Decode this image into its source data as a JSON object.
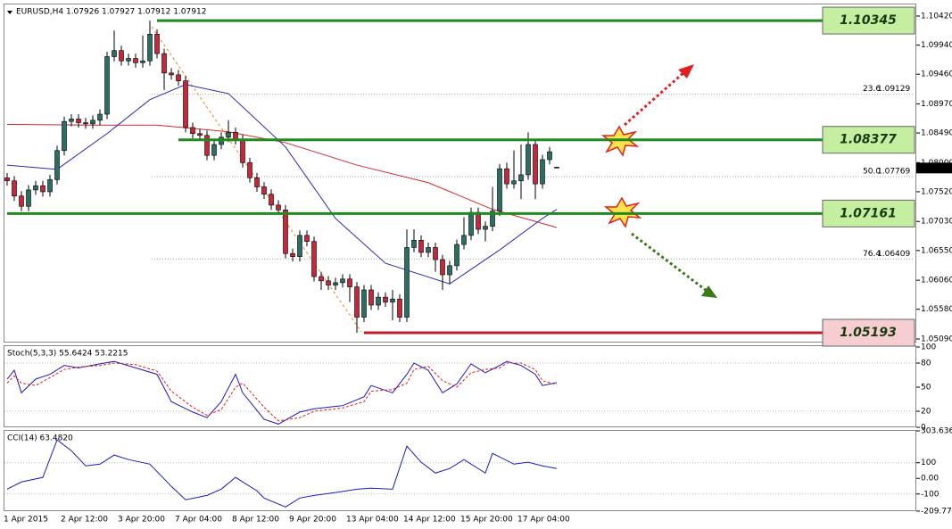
{
  "chart_data": [
    {
      "type": "candlestick",
      "title": "EURUSD,H4  1.07926 1.07927 1.07912 1.07912",
      "categories": [
        "1 Apr 2015",
        null,
        null,
        null,
        null,
        null,
        null,
        null,
        "2 Apr 12:00",
        null,
        null,
        null,
        null,
        null,
        null,
        null,
        "3 Apr 20:00",
        null,
        null,
        null,
        null,
        null,
        null,
        null,
        "7 Apr 04:00",
        null,
        null,
        null,
        null,
        null,
        null,
        null,
        "8 Apr 12:00",
        null,
        null,
        null,
        null,
        null,
        null,
        null,
        "9 Apr 20:00",
        null,
        null,
        null,
        null,
        null,
        null,
        null,
        "13 Apr 04:00",
        null,
        null,
        null,
        null,
        null,
        null,
        null,
        "14 Apr 12:00",
        null,
        null,
        null,
        null,
        null,
        null,
        null,
        "15 Apr 20:00",
        null,
        null,
        null,
        null,
        null,
        null,
        null,
        "17 Apr 04:00",
        null,
        null,
        null,
        null,
        null
      ],
      "open": [
        1.0775,
        1.077,
        1.0745,
        1.0728,
        1.0755,
        1.0762,
        1.0752,
        1.0772,
        1.082,
        1.0868,
        1.0872,
        1.0866,
        1.0864,
        1.087,
        1.088,
        1.0975,
        1.0985,
        1.0968,
        1.0972,
        1.0965,
        1.0968,
        1.1012,
        1.098,
        1.0948,
        1.0945,
        1.0935,
        1.0858,
        1.0848,
        1.0845,
        1.0812,
        1.083,
        1.0842,
        1.085,
        1.0838,
        1.08,
        1.0775,
        1.076,
        1.0748,
        1.073,
        1.0722,
        1.065,
        1.0645,
        1.068,
        1.067,
        1.0612,
        1.0605,
        1.0598,
        1.0602,
        1.0608,
        1.0595,
        1.0545,
        1.059,
        1.0565,
        1.0578,
        1.057,
        1.0575,
        1.0545,
        1.066,
        1.0672,
        1.0652,
        1.066,
        1.064,
        1.0615,
        1.063,
        1.0665,
        1.068,
        1.0718,
        1.069,
        1.0695,
        1.072,
        1.079,
        1.0765,
        1.077,
        1.078,
        1.083,
        1.0765,
        1.0805,
        1.07926
      ],
      "high": [
        1.0783,
        1.0778,
        1.0753,
        1.0763,
        1.077,
        1.077,
        1.078,
        1.0828,
        1.0876,
        1.088,
        1.088,
        1.0874,
        1.0878,
        1.0888,
        1.0983,
        1.1018,
        1.0993,
        1.098,
        1.098,
        1.101,
        1.10345,
        1.102,
        1.0988,
        1.0956,
        1.0953,
        1.0943,
        1.0866,
        1.0856,
        1.0853,
        1.0838,
        1.085,
        1.087,
        1.0858,
        1.0846,
        1.0808,
        1.0783,
        1.0768,
        1.0756,
        1.0738,
        1.073,
        1.0658,
        1.0688,
        1.0688,
        1.0678,
        1.062,
        1.0613,
        1.061,
        1.0616,
        1.0616,
        1.0603,
        1.0598,
        1.0598,
        1.0586,
        1.0586,
        1.059,
        1.0583,
        1.069,
        1.069,
        1.068,
        1.0668,
        1.0668,
        1.0648,
        1.0638,
        1.0673,
        1.071,
        1.0726,
        1.0726,
        1.0703,
        1.076,
        1.0798,
        1.08,
        1.082,
        1.083,
        1.085,
        1.0838,
        1.0813,
        1.0826,
        1.07927
      ],
      "low": [
        1.0762,
        1.0737,
        1.072,
        1.072,
        1.0747,
        1.0744,
        1.0744,
        1.0764,
        1.0812,
        1.086,
        1.0858,
        1.0856,
        1.0856,
        1.0862,
        1.0872,
        1.0967,
        1.096,
        1.096,
        1.0957,
        1.0957,
        1.096,
        1.0972,
        1.092,
        1.0937,
        1.0927,
        1.085,
        1.084,
        1.0837,
        1.0804,
        1.0804,
        1.0822,
        1.0834,
        1.083,
        1.0792,
        1.0767,
        1.0752,
        1.074,
        1.0722,
        1.0714,
        1.0642,
        1.0637,
        1.0637,
        1.0662,
        1.0604,
        1.059,
        1.059,
        1.059,
        1.0594,
        1.057,
        1.05193,
        1.0537,
        1.0557,
        1.0557,
        1.0562,
        1.054,
        1.0537,
        1.0537,
        1.0652,
        1.0644,
        1.0644,
        1.062,
        1.059,
        1.06,
        1.0622,
        1.0657,
        1.0672,
        1.0682,
        1.067,
        1.0687,
        1.0712,
        1.0757,
        1.0757,
        1.074,
        1.0772,
        1.074,
        1.0757,
        1.0797,
        1.07912
      ],
      "close": [
        1.077,
        1.0745,
        1.0728,
        1.0755,
        1.0762,
        1.0752,
        1.0772,
        1.082,
        1.0868,
        1.0872,
        1.0866,
        1.0864,
        1.087,
        1.088,
        1.0975,
        1.0985,
        1.0968,
        1.0972,
        1.0965,
        1.0968,
        1.1012,
        1.098,
        1.0948,
        1.0945,
        1.0935,
        1.0858,
        1.0848,
        1.0845,
        1.0812,
        1.083,
        1.0842,
        1.085,
        1.0838,
        1.08,
        1.0775,
        1.076,
        1.0748,
        1.073,
        1.0722,
        1.065,
        1.0645,
        1.068,
        1.067,
        1.0612,
        1.0605,
        1.0598,
        1.0602,
        1.0608,
        1.0595,
        1.0545,
        1.059,
        1.0565,
        1.0578,
        1.057,
        1.0575,
        1.0545,
        1.066,
        1.0672,
        1.0652,
        1.066,
        1.064,
        1.0615,
        1.063,
        1.0665,
        1.068,
        1.0718,
        1.069,
        1.0695,
        1.072,
        1.079,
        1.0765,
        1.077,
        1.078,
        1.083,
        1.0765,
        1.0805,
        1.0818,
        1.07912
      ],
      "up_color": "#2d6e62",
      "down_color": "#c4283c",
      "xlim": [
        -0.375,
        127.375
      ],
      "ylim": [
        1.05046,
        1.10611
      ],
      "yticks": [
        {
          "value": 1.1042,
          "label": "1.10420"
        },
        {
          "value": 1.0994,
          "label": "1.09940"
        },
        {
          "value": 1.0946,
          "label": "1.09460"
        },
        {
          "value": 1.0897,
          "label": "1.08970"
        },
        {
          "value": 1.0849,
          "label": "1.08490"
        },
        {
          "value": 1.08,
          "label": "1.08000"
        },
        {
          "value": 1.0752,
          "label": "1.07520"
        },
        {
          "value": 1.0703,
          "label": "1.07030"
        },
        {
          "value": 1.0655,
          "label": "1.06550"
        },
        {
          "value": 1.0606,
          "label": "1.06060"
        },
        {
          "value": 1.0558,
          "label": "1.05580"
        },
        {
          "value": 1.0509,
          "label": "1.05090"
        }
      ],
      "moving_averages": [
        {
          "color": "#d42a2a",
          "x": [
            0,
            12,
            21,
            31,
            39,
            49,
            59,
            68,
            77
          ],
          "values": [
            1.0863,
            1.0862,
            1.0862,
            1.0851,
            1.0833,
            1.0796,
            1.0767,
            1.0723,
            1.0693
          ]
        },
        {
          "color": "#2a2ab4",
          "x": [
            0,
            7,
            14,
            20,
            25,
            31,
            39,
            46,
            53,
            62,
            69,
            75,
            77
          ],
          "values": [
            1.0796,
            1.0789,
            1.0848,
            1.0904,
            1.0929,
            1.0914,
            1.0826,
            1.0708,
            1.0634,
            1.06,
            1.0656,
            1.0708,
            1.0723
          ]
        }
      ],
      "levels": [
        {
          "value": 1.10345,
          "x_start": 21,
          "color": "#1f8a1f",
          "box_color": "#c6eea0"
        },
        {
          "value": 1.08377,
          "x_start": 24,
          "color": "#1f8a1f",
          "box_color": "#c6eea0"
        },
        {
          "value": 1.07161,
          "x_start": 0,
          "color": "#1f8a1f",
          "box_color": "#c6eea0"
        },
        {
          "value": 1.05193,
          "x_start": 50,
          "color": "#c41e2a",
          "box_color": "#f6cdd1"
        }
      ],
      "fib_levels": [
        {
          "ratio": "23.6",
          "price": 1.09129
        },
        {
          "ratio": "50.0",
          "price": 1.07769
        },
        {
          "ratio": "76.4",
          "price": 1.06409
        }
      ]
    },
    {
      "type": "line",
      "title": "Stoch(5,3,3) 55.6424 53.2215",
      "xlim": [
        -0.375,
        127.375
      ],
      "ylim": [
        0,
        101.1
      ],
      "yticks": [
        100,
        80,
        50,
        20,
        0
      ],
      "levels": [
        80,
        20
      ],
      "series": [
        {
          "color": "#1a1ac0",
          "x": [
            0,
            1,
            2,
            4,
            6,
            8,
            10,
            13,
            15,
            18,
            21,
            23,
            26,
            28,
            30,
            32,
            33,
            36,
            38,
            41,
            43,
            47,
            50,
            51,
            54,
            56,
            57,
            59,
            61,
            63,
            65,
            67,
            69,
            70,
            72,
            74,
            75,
            77
          ],
          "values": [
            60,
            71,
            43,
            60,
            66,
            77,
            74,
            79,
            82,
            74,
            66,
            32,
            19,
            12,
            32,
            66,
            43,
            10,
            4,
            19,
            23,
            27,
            38,
            52,
            43,
            66,
            80,
            71,
            43,
            54,
            79,
            68,
            77,
            82,
            77,
            66,
            52,
            55.6424
          ]
        },
        {
          "color": "#e02020",
          "dashed": true,
          "x": [
            0,
            1,
            2,
            4,
            6,
            8,
            10,
            13,
            15,
            18,
            21,
            23,
            26,
            28,
            30,
            32,
            33,
            36,
            38,
            41,
            43,
            47,
            50,
            51,
            54,
            56,
            57,
            59,
            61,
            63,
            65,
            67,
            69,
            70,
            72,
            74,
            75,
            77
          ],
          "values": [
            55,
            64,
            55,
            52,
            62,
            72,
            75,
            77,
            80,
            78,
            70,
            45,
            25,
            15,
            22,
            50,
            55,
            25,
            8,
            12,
            20,
            24,
            32,
            45,
            47,
            55,
            72,
            76,
            58,
            50,
            68,
            72,
            74,
            80,
            80,
            72,
            58,
            53.2215
          ]
        }
      ]
    },
    {
      "type": "line",
      "title": "CCI(14) 63.4820",
      "xlim": [
        -0.375,
        127.375
      ],
      "ylim": [
        -209.772,
        303.6363
      ],
      "yticks": [
        303.6363,
        100,
        {
          "value": 0,
          "label": "0.00"
        },
        -100,
        -209.772
      ],
      "levels": [
        100,
        -100
      ],
      "series": [
        {
          "color": "#1a1ac0",
          "x": [
            0,
            2,
            5,
            7,
            9,
            11,
            13,
            15,
            17,
            20,
            23,
            25,
            28,
            30,
            32,
            35,
            36,
            39,
            41,
            43,
            46,
            49,
            51,
            54,
            56,
            58,
            60,
            62,
            64,
            67,
            68,
            71,
            73,
            75,
            77
          ],
          "values": [
            -69,
            -23,
            6,
            246,
            177,
            80,
            91,
            149,
            120,
            91,
            -51,
            -137,
            -109,
            -69,
            6,
            -80,
            -126,
            -183,
            -126,
            -109,
            -91,
            -69,
            -63,
            -69,
            206,
            103,
            34,
            63,
            120,
            34,
            160,
            91,
            103,
            80,
            63.482
          ]
        }
      ]
    }
  ]
}
